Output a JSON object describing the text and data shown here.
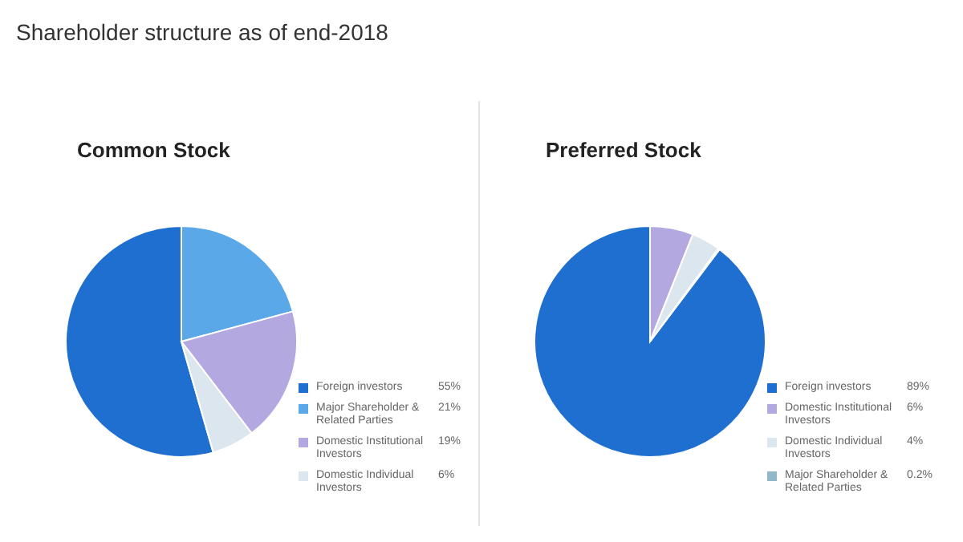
{
  "chart_data": [
    {
      "type": "other",
      "title": "Shareholder structure as of end-2018"
    },
    {
      "type": "pie",
      "title": "Common Stock",
      "categories": [
        "Foreign investors",
        "Major Shareholder & Related Parties",
        "Domestic Institutional Investors",
        "Domestic Individual Investors"
      ],
      "values": [
        55,
        21,
        19,
        6
      ],
      "colors": [
        "#1f6fd0",
        "#5aa8e8",
        "#b3a8e0",
        "#dce6ee"
      ],
      "value_labels": [
        "55%",
        "21%",
        "19%",
        "6%"
      ],
      "legend": "right"
    },
    {
      "type": "pie",
      "title": "Preferred Stock",
      "categories": [
        "Foreign investors",
        "Domestic Institutional Investors",
        "Domestic Individual Investors",
        "Major Shareholder & Related Parties"
      ],
      "values": [
        89,
        6,
        4,
        0.2
      ],
      "colors": [
        "#1f6fd0",
        "#b3a8e0",
        "#dce6ee",
        "#8fb8c8"
      ],
      "value_labels": [
        "89%",
        "6%",
        "4%",
        "0.2%"
      ],
      "legend": "right"
    }
  ]
}
